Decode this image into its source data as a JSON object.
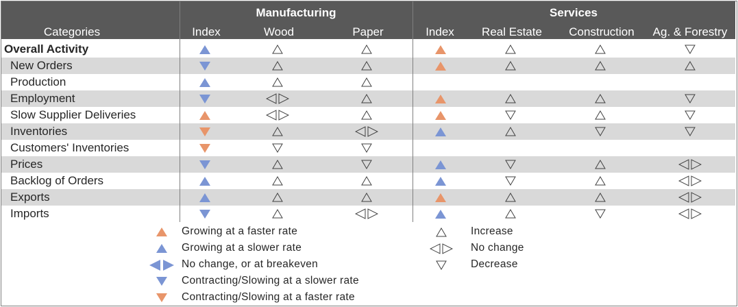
{
  "colors": {
    "header_bg": "#595959",
    "row_shade": "#d9d9d9",
    "orange": "#e8956a",
    "blue": "#7b95d4",
    "outline": "#404040"
  },
  "header": {
    "categories_label": "Categories",
    "groups": [
      {
        "name": "Manufacturing",
        "columns": [
          "Index",
          "Wood",
          "Paper"
        ]
      },
      {
        "name": "Services",
        "columns": [
          "Index",
          "Real Estate",
          "Construction",
          "Ag. & Forestry"
        ]
      }
    ]
  },
  "rows": [
    {
      "label": "Overall Activity",
      "bold": true,
      "cells": [
        "filled-up-blue",
        "outline-up",
        "outline-up",
        "filled-up-orange",
        "outline-up",
        "outline-up",
        "outline-down"
      ]
    },
    {
      "label": "New Orders",
      "cells": [
        "filled-down-blue",
        "outline-up",
        "outline-up",
        "filled-up-orange",
        "outline-up",
        "outline-up",
        "outline-up"
      ]
    },
    {
      "label": "Production",
      "cells": [
        "filled-up-blue",
        "outline-up",
        "outline-up",
        "",
        "",
        "",
        ""
      ]
    },
    {
      "label": "Employment",
      "cells": [
        "filled-down-blue",
        "outline-nochange",
        "outline-up",
        "filled-up-orange",
        "outline-up",
        "outline-up",
        "outline-down"
      ]
    },
    {
      "label": "Slow Supplier Deliveries",
      "cells": [
        "filled-up-orange",
        "outline-nochange",
        "outline-up",
        "filled-up-orange",
        "outline-down",
        "outline-up",
        "outline-down"
      ]
    },
    {
      "label": "Inventories",
      "cells": [
        "filled-down-orange",
        "outline-up",
        "outline-nochange",
        "filled-up-blue",
        "outline-up",
        "outline-down",
        "outline-down"
      ]
    },
    {
      "label": "Customers' Inventories",
      "cells": [
        "filled-down-orange",
        "outline-down",
        "outline-down",
        "",
        "",
        "",
        ""
      ]
    },
    {
      "label": "Prices",
      "cells": [
        "filled-down-blue",
        "outline-up",
        "outline-down",
        "filled-up-blue",
        "outline-down",
        "outline-up",
        "outline-nochange"
      ]
    },
    {
      "label": "Backlog of Orders",
      "cells": [
        "filled-up-blue",
        "outline-up",
        "outline-up",
        "filled-up-blue",
        "outline-down",
        "outline-up",
        "outline-nochange"
      ]
    },
    {
      "label": "Exports",
      "cells": [
        "filled-up-blue",
        "outline-up",
        "outline-up",
        "filled-up-orange",
        "outline-up",
        "outline-up",
        "outline-nochange"
      ]
    },
    {
      "label": "Imports",
      "cells": [
        "filled-down-blue",
        "outline-up",
        "outline-nochange",
        "filled-up-blue",
        "outline-up",
        "outline-down",
        "outline-nochange"
      ]
    }
  ],
  "legend": {
    "filled": [
      {
        "symbol": "filled-up-orange",
        "text": "Growing at a faster rate"
      },
      {
        "symbol": "filled-up-blue",
        "text": "Growing at a slower rate"
      },
      {
        "symbol": "filled-nochange-blue",
        "text": "No change, or at breakeven"
      },
      {
        "symbol": "filled-down-blue",
        "text": "Contracting/Slowing at a slower rate"
      },
      {
        "symbol": "filled-down-orange",
        "text": "Contracting/Slowing at a faster rate"
      }
    ],
    "outline": [
      {
        "symbol": "outline-up",
        "text": "Increase"
      },
      {
        "symbol": "outline-nochange",
        "text": "No change"
      },
      {
        "symbol": "outline-down",
        "text": "Decrease"
      }
    ]
  }
}
